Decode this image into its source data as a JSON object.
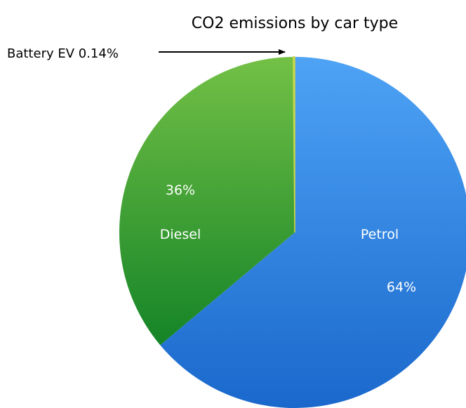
{
  "chart_data": {
    "type": "pie",
    "title": "CO2 emissions by car type",
    "slices": [
      {
        "name": "Petrol",
        "value": 64,
        "value_label": "64%",
        "color_top": "#4ea3f5",
        "color_bottom": "#1a68cc"
      },
      {
        "name": "Diesel",
        "value": 36,
        "value_label": "36%",
        "color_top": "#73c046",
        "color_bottom": "#148427"
      },
      {
        "name": "Battery EV",
        "value": 0.14,
        "value_label": "0.14%",
        "color_top": "#c9d64a",
        "color_bottom": "#c9d64a"
      }
    ],
    "callout": {
      "slice": "Battery EV",
      "text": "Battery EV 0.14%"
    },
    "legend": "none"
  }
}
